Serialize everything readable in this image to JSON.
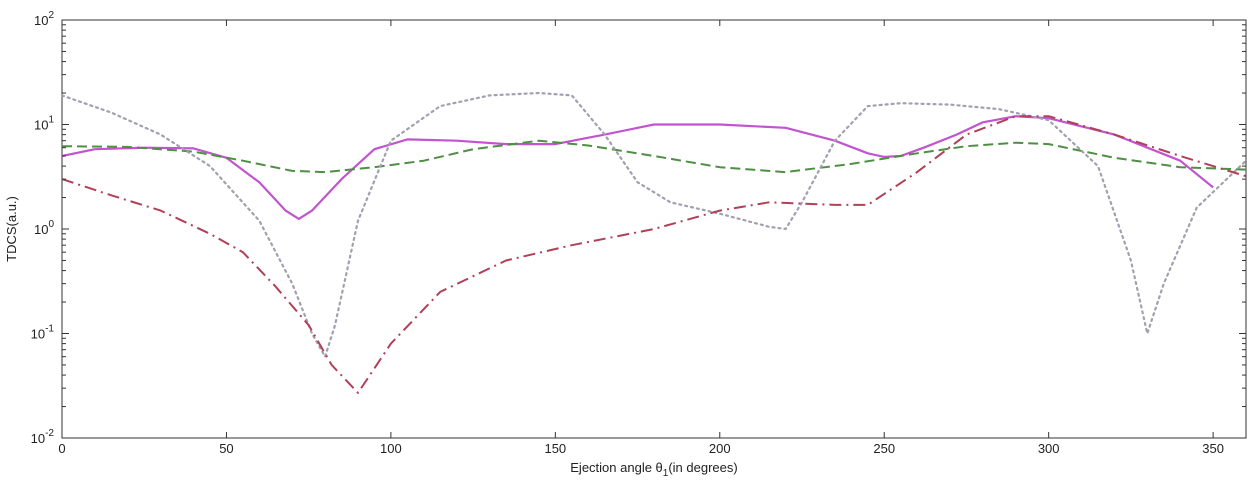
{
  "chart_data": {
    "type": "line",
    "title": "",
    "xlabel": "Ejection angle θ",
    "xlabel_subscript": "1",
    "xlabel_suffix": "(in degrees)",
    "ylabel": "TDCS(a.u.)",
    "xlim": [
      0,
      360
    ],
    "ylim": [
      0.01,
      100
    ],
    "yscale": "log",
    "grid": false,
    "legend": "none",
    "x_ticks": [
      "0",
      "50",
      "100",
      "150",
      "200",
      "250",
      "300",
      "350"
    ],
    "y_ticks": [
      {
        "base": "10",
        "exp": "-2"
      },
      {
        "base": "10",
        "exp": "-1"
      },
      {
        "base": "10",
        "exp": "0"
      },
      {
        "base": "10",
        "exp": "1"
      },
      {
        "base": "10",
        "exp": "2"
      }
    ],
    "series": [
      {
        "style": "solid",
        "color": "#c254cf",
        "x": [
          0,
          10,
          25,
          40,
          50,
          60,
          68,
          72,
          76,
          85,
          95,
          105,
          120,
          135,
          150,
          165,
          180,
          200,
          220,
          235,
          245,
          250,
          255,
          262,
          272,
          280,
          290,
          300,
          320,
          340,
          350
        ],
        "y": [
          5.0,
          5.8,
          6.0,
          5.9,
          4.8,
          2.8,
          1.5,
          1.25,
          1.5,
          3.0,
          5.8,
          7.2,
          7.0,
          6.5,
          6.5,
          8.0,
          10.0,
          10.0,
          9.3,
          7.0,
          5.3,
          4.9,
          5.0,
          6.0,
          8.0,
          10.5,
          12.0,
          11.5,
          8.0,
          4.5,
          2.5
        ]
      },
      {
        "style": "dashed",
        "color": "#4e8f44",
        "x": [
          0,
          20,
          40,
          55,
          70,
          80,
          95,
          110,
          125,
          145,
          160,
          180,
          200,
          220,
          240,
          260,
          275,
          290,
          300,
          320,
          340,
          360
        ],
        "y": [
          6.2,
          6.1,
          5.5,
          4.5,
          3.6,
          3.5,
          3.9,
          4.5,
          5.8,
          7.0,
          6.3,
          5.0,
          3.9,
          3.5,
          4.2,
          5.3,
          6.2,
          6.7,
          6.5,
          4.8,
          3.9,
          3.7
        ]
      },
      {
        "style": "dotted",
        "color": "#a0a0b0",
        "x": [
          0,
          15,
          30,
          45,
          60,
          70,
          76,
          80,
          83,
          90,
          100,
          115,
          130,
          145,
          155,
          165,
          175,
          185,
          200,
          215,
          220,
          225,
          235,
          245,
          255,
          270,
          285,
          300,
          315,
          325,
          330,
          335,
          345,
          360
        ],
        "y": [
          19,
          13,
          8,
          4,
          1.2,
          0.3,
          0.1,
          0.06,
          0.12,
          1.2,
          7,
          15,
          19,
          20,
          19,
          8,
          2.8,
          1.8,
          1.4,
          1.05,
          1.0,
          1.8,
          7,
          15,
          16,
          15.5,
          14,
          11,
          4,
          0.5,
          0.1,
          0.3,
          1.6,
          4.5
        ]
      },
      {
        "style": "dashdot",
        "color": "#b04058",
        "x": [
          0,
          15,
          30,
          45,
          55,
          65,
          75,
          82,
          90,
          100,
          115,
          135,
          155,
          180,
          200,
          215,
          225,
          235,
          245,
          260,
          275,
          290,
          300,
          320,
          340,
          360
        ],
        "y": [
          3.0,
          2.1,
          1.5,
          0.9,
          0.6,
          0.28,
          0.12,
          0.05,
          0.027,
          0.08,
          0.25,
          0.5,
          0.7,
          1.0,
          1.5,
          1.8,
          1.75,
          1.7,
          1.7,
          3.5,
          8.0,
          12.0,
          12.0,
          8.0,
          5.0,
          3.2
        ]
      }
    ]
  }
}
